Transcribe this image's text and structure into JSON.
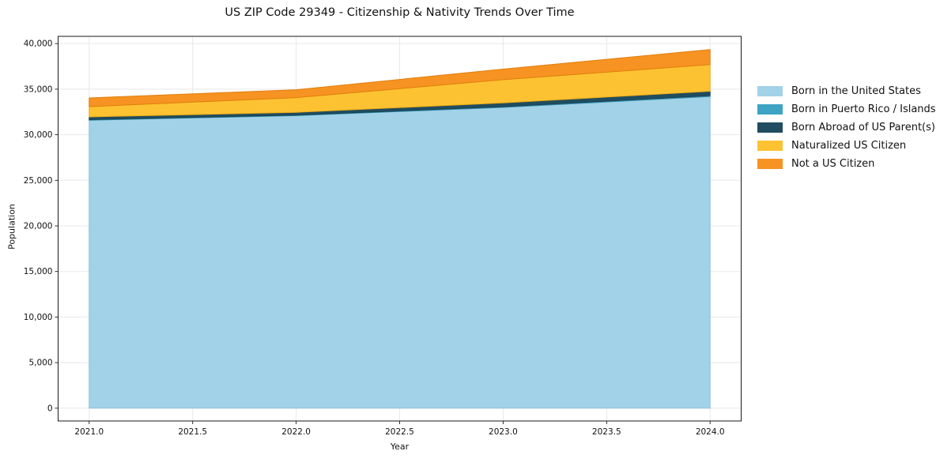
{
  "chart_data": {
    "type": "area",
    "stacked": true,
    "title": "US ZIP Code 29349 - Citizenship & Nativity Trends Over Time",
    "xlabel": "Year",
    "ylabel": "Population",
    "x": [
      2021,
      2022,
      2023,
      2024
    ],
    "series": [
      {
        "name": "Born in the United States",
        "values": [
          31600,
          32100,
          33000,
          34200
        ],
        "color": "#a2d2e8",
        "edge": "#8cc2dc"
      },
      {
        "name": "Born in Puerto Rico / Islands",
        "values": [
          60,
          60,
          80,
          100
        ],
        "color": "#3ea4c3",
        "edge": "#338fae"
      },
      {
        "name": "Born Abroad of US Parent(s)",
        "values": [
          300,
          300,
          420,
          480
        ],
        "color": "#204d60",
        "edge": "#1a4252"
      },
      {
        "name": "Naturalized US Citizen",
        "values": [
          1130,
          1620,
          2540,
          2920
        ],
        "color": "#fdc232",
        "edge": "#edac15"
      },
      {
        "name": "Not a US Citizen",
        "values": [
          950,
          860,
          1160,
          1650
        ],
        "color": "#f79322",
        "edge": "#e07f0d"
      }
    ],
    "totals": [
      34040,
      34940,
      37200,
      39350
    ],
    "xlim": [
      2020.85,
      2024.15
    ],
    "ylim": [
      -1400,
      40800
    ],
    "x_ticks": [
      2021.0,
      2021.5,
      2022.0,
      2022.5,
      2023.0,
      2023.5,
      2024.0
    ],
    "x_tick_labels": [
      "2021.0",
      "2021.5",
      "2022.0",
      "2022.5",
      "2023.0",
      "2023.5",
      "2024.0"
    ],
    "y_ticks": [
      0,
      5000,
      10000,
      15000,
      20000,
      25000,
      30000,
      35000,
      40000
    ],
    "y_tick_labels": [
      "0",
      "5,000",
      "10,000",
      "15,000",
      "20,000",
      "25,000",
      "30,000",
      "35,000",
      "40,000"
    ],
    "grid": true,
    "grid_color": "#e8e8e8",
    "spine_color": "#1a1a1a",
    "tick_color": "#1a1a1a",
    "text_color": "#111111",
    "legend_position": "outside-right"
  }
}
